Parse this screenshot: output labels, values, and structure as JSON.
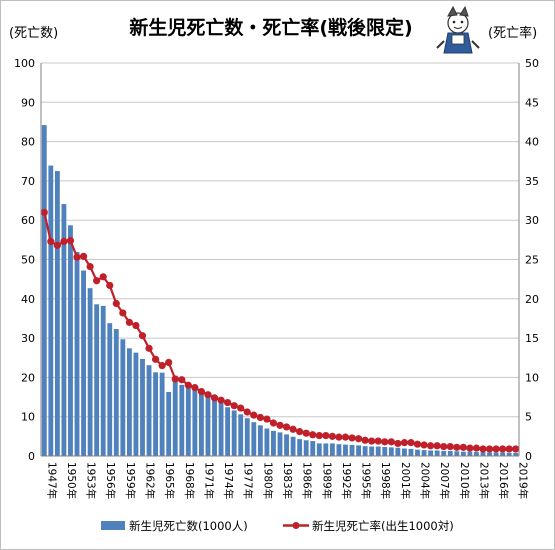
{
  "chart_data": {
    "type": "bar+line",
    "title": "新生児死亡数・死亡率(戦後限定)",
    "y_left_unit": "(死亡数)",
    "y_right_unit": "(死亡率)",
    "y_left_range": [
      0,
      100
    ],
    "y_right_range": [
      0,
      50
    ],
    "y_left_ticks": [
      "0",
      "10",
      "20",
      "30",
      "40",
      "50",
      "60",
      "70",
      "80",
      "90",
      "100"
    ],
    "y_right_ticks": [
      "0",
      "5",
      "10",
      "15",
      "20",
      "25",
      "30",
      "35",
      "40",
      "45",
      "50"
    ],
    "grid": true,
    "legend_position": "bottom",
    "colors": {
      "bar": "#4f81bd",
      "line": "#c0202a"
    },
    "x": [
      "1947年",
      "1948年",
      "1949年",
      "1950年",
      "1951年",
      "1952年",
      "1953年",
      "1954年",
      "1955年",
      "1956年",
      "1957年",
      "1958年",
      "1959年",
      "1960年",
      "1961年",
      "1962年",
      "1963年",
      "1964年",
      "1965年",
      "1966年",
      "1967年",
      "1968年",
      "1969年",
      "1970年",
      "1971年",
      "1972年",
      "1973年",
      "1974年",
      "1975年",
      "1976年",
      "1977年",
      "1978年",
      "1979年",
      "1980年",
      "1981年",
      "1982年",
      "1983年",
      "1984年",
      "1985年",
      "1986年",
      "1987年",
      "1988年",
      "1989年",
      "1990年",
      "1991年",
      "1992年",
      "1993年",
      "1994年",
      "1995年",
      "1996年",
      "1997年",
      "1998年",
      "1999年",
      "2000年",
      "2001年",
      "2002年",
      "2003年",
      "2004年",
      "2005年",
      "2006年",
      "2007年",
      "2008年",
      "2009年",
      "2010年",
      "2011年",
      "2012年",
      "2013年",
      "2014年",
      "2015年",
      "2016年",
      "2017年",
      "2018年",
      "2019年"
    ],
    "x_tick_labels": [
      "1947年",
      "1950年",
      "1953年",
      "1956年",
      "1959年",
      "1962年",
      "1965年",
      "1968年",
      "1971年",
      "1974年",
      "1977年",
      "1980年",
      "1983年",
      "1986年",
      "1989年",
      "1992年",
      "1995年",
      "1998年",
      "2001年",
      "2004年",
      "2007年",
      "2010年",
      "2013年",
      "2016年",
      "2019年"
    ],
    "series": [
      {
        "name": "新生児死亡数(1000人)",
        "axis": "left",
        "type": "bar",
        "values": [
          84.2,
          73.9,
          72.5,
          64.1,
          58.7,
          51.9,
          47.2,
          42.7,
          38.6,
          38.2,
          33.8,
          32.3,
          29.7,
          27.4,
          26.3,
          24.7,
          23.1,
          21.3,
          21.2,
          16.3,
          19.2,
          18.1,
          17.3,
          16.7,
          15.9,
          15.2,
          14.9,
          13.7,
          12.4,
          11.6,
          10.6,
          9.6,
          8.6,
          7.8,
          7.0,
          6.4,
          6.0,
          5.5,
          4.9,
          4.3,
          4.0,
          3.8,
          3.2,
          3.2,
          3.2,
          3.0,
          2.9,
          2.8,
          2.7,
          2.5,
          2.4,
          2.4,
          2.3,
          2.2,
          2.1,
          1.9,
          1.8,
          1.6,
          1.5,
          1.4,
          1.4,
          1.3,
          1.3,
          1.2,
          1.1,
          1.1,
          1.0,
          1.0,
          0.9,
          0.9,
          0.9,
          0.8,
          0.8
        ]
      },
      {
        "name": "新生児死亡率(出生1000対)",
        "axis": "right",
        "type": "line",
        "values": [
          31.0,
          27.3,
          26.8,
          27.3,
          27.4,
          25.3,
          25.4,
          24.1,
          22.3,
          22.8,
          21.7,
          19.4,
          18.2,
          17.0,
          16.6,
          15.3,
          13.7,
          12.3,
          11.5,
          11.9,
          9.8,
          9.7,
          9.0,
          8.7,
          8.2,
          7.8,
          7.4,
          7.1,
          6.8,
          6.4,
          6.1,
          5.6,
          5.2,
          4.9,
          4.7,
          4.2,
          3.9,
          3.7,
          3.4,
          3.1,
          2.9,
          2.7,
          2.6,
          2.6,
          2.5,
          2.4,
          2.4,
          2.3,
          2.2,
          2.0,
          1.9,
          1.9,
          1.8,
          1.8,
          1.6,
          1.7,
          1.7,
          1.5,
          1.4,
          1.3,
          1.3,
          1.2,
          1.2,
          1.1,
          1.1,
          1.0,
          1.0,
          0.9,
          0.9,
          0.9,
          0.9,
          0.9,
          0.9
        ]
      }
    ]
  }
}
